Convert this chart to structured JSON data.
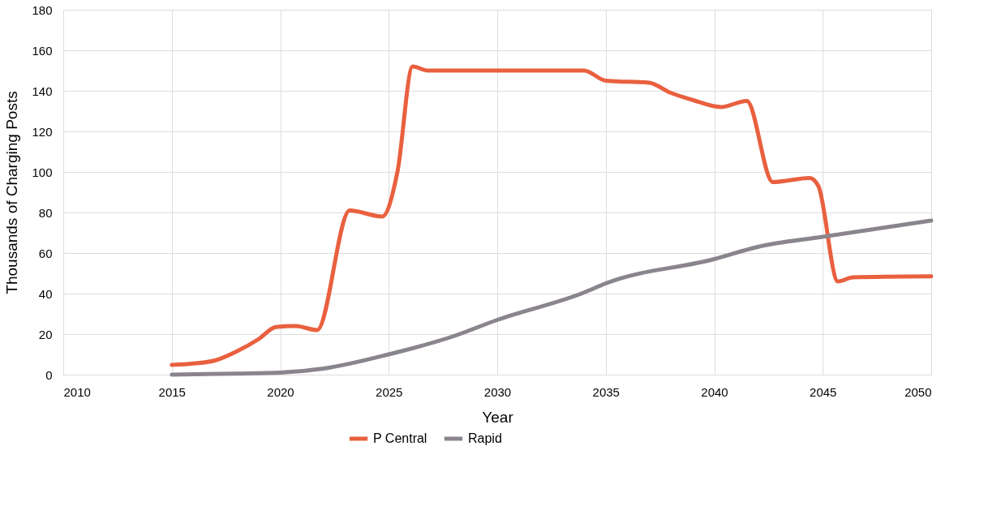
{
  "chart_data": {
    "type": "line",
    "xlabel": "Year",
    "ylabel": "Thousands of Charging Posts",
    "xlim": [
      2010,
      2050
    ],
    "xticks": [
      2010,
      2015,
      2020,
      2025,
      2030,
      2035,
      2040,
      2045,
      2050
    ],
    "ylim": [
      0,
      180
    ],
    "yticks": [
      0,
      20,
      40,
      60,
      80,
      100,
      120,
      140,
      160,
      180
    ],
    "grid": true,
    "legend": "bottom",
    "marker": "none",
    "line_style": "solid",
    "series": [
      {
        "name": "P Central",
        "color": "#e9603f",
        "x": [
          2015,
          2016,
          2017,
          2018,
          2019,
          2019.8,
          2020.7,
          2021.7,
          2023.2,
          2024.7,
          2025.4,
          2026.1,
          2026.8,
          2030,
          2034,
          2035,
          2037,
          2038,
          2039,
          2040.3,
          2041.5,
          2042.7,
          2044.4,
          2044.8,
          2045.7,
          2046.4,
          2050
        ],
        "values": [
          4.8,
          5.5,
          7,
          11.5,
          17.5,
          23.5,
          24,
          22,
          81,
          78,
          100,
          152,
          150,
          150,
          150,
          145,
          144,
          139,
          135.5,
          132,
          135,
          95,
          97,
          93,
          46,
          48,
          48.5
        ]
      },
      {
        "name": "Rapid",
        "color": "#8a858c",
        "x": [
          2015,
          2018,
          2020,
          2022,
          2025,
          2028,
          2030,
          2034,
          2035,
          2040,
          2042,
          2045,
          2050
        ],
        "values": [
          0,
          0.5,
          1,
          3,
          10,
          19,
          27,
          40.5,
          45,
          57,
          63,
          68,
          76
        ]
      }
    ]
  }
}
